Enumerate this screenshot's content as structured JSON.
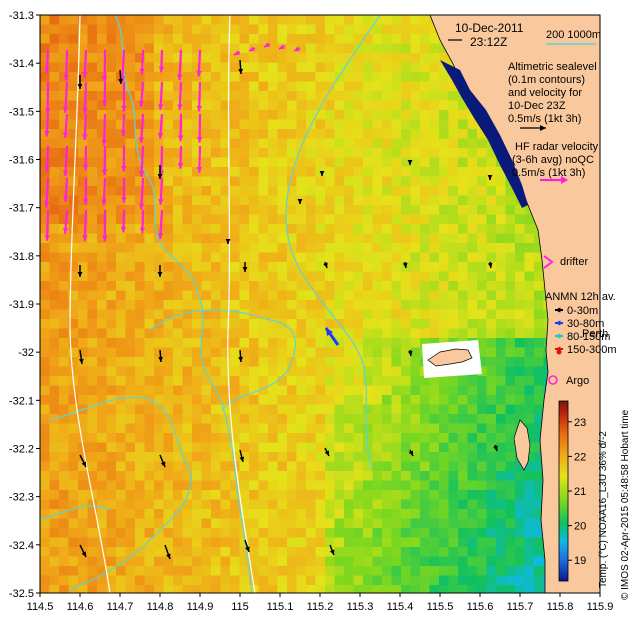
{
  "map": {
    "lon_range": [
      114.5,
      115.9
    ],
    "lat_range": [
      -32.5,
      -31.3
    ],
    "lon_ticks": [
      "114.5",
      "114.6",
      "114.7",
      "114.8",
      "114.9",
      "115",
      "115.1",
      "115.2",
      "115.3",
      "115.4",
      "115.5",
      "115.6",
      "115.7",
      "115.8",
      "115.9"
    ],
    "lat_ticks": [
      "-31.3",
      "-31.4",
      "-31.5",
      "-31.6",
      "-31.7",
      "-31.8",
      "-31.9",
      "-32",
      "-32.1",
      "-32.2",
      "-32.3",
      "-32.4",
      "-32.5"
    ],
    "land_color": "#f9c99d",
    "contour_color": "#5fd4d4"
  },
  "legend": {
    "date": "10-Dec-2011",
    "time": "23:12Z",
    "scale_label": "200  1000m",
    "altimetric_lines": [
      "Altimetric sealevel",
      "(0.1m contours)",
      "and velocity for",
      "10-Dec 23Z",
      "0.5m/s (1kt 3h)"
    ],
    "hf_lines": [
      "HF radar velocity",
      "(3-6h avg) noQC",
      "0.5m/s (1kt 3h)"
    ],
    "drifter": "drifter",
    "anmn_title": "ANMN 12h av.",
    "anmn_items": [
      {
        "label": "0-30m",
        "color": "#000000"
      },
      {
        "label": "30-80m",
        "color": "#1a3cff"
      },
      {
        "label": "80-150m",
        "color": "#19c8c8"
      },
      {
        "label": "150-300m",
        "color": "#e01010"
      }
    ],
    "perth": "Perth",
    "argo": "Argo",
    "hf_color": "#ff22dd"
  },
  "colorbar": {
    "ticks": [
      "19",
      "20",
      "21",
      "22",
      "23"
    ],
    "range": [
      18.4,
      23.6
    ],
    "label": "Temp. (°C) NOAA16_L3U 36% d/-2"
  },
  "credit": "© IMOS 02-Apr-2015 05:48:58 Hobart time"
}
